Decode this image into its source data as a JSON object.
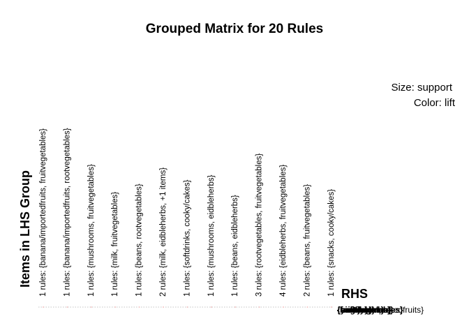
{
  "chart_data": {
    "type": "scatter",
    "title": "Grouped Matrix for 20 Rules",
    "legend": {
      "placement": "top-right",
      "size_label": "Size: support",
      "color_label": "Color: lift"
    },
    "xlabel": "Items in LHS Group",
    "ylabel": "RHS",
    "lhs_groups": [
      "1 rules: {banana/importedfruits, fruitvegetables}",
      "1 rules: {banana/importedfruits, rootvegetables}",
      "1 rules: {mushrooms, fruitvegetables}",
      "1 rules: {milk, fruitvegetables}",
      "1 rules: {beans, rootvegetables}",
      "2 rules: {milk, eidbleherbs, +1 items}",
      "1 rules: {softdrinks, cooky/cakes}",
      "1 rules: {mushrooms, eidbleherbs}",
      "1 rules: {beans, eidbleherbs}",
      "3 rules: {rootvegetables, fruitvegetables}",
      "4 rules: {eidbleherbs, fruitvegetables}",
      "2 rules: {beans, fruitvegetables}",
      "1 rules: {snacks, cooky/cakes}"
    ],
    "rhs_overlap_labels": [
      "{fruitvegetables}",
      "{rootvegetables}",
      "{eidbleherbs}",
      "{milk}",
      "{beans}",
      "{softdrinks}",
      "{cooky/cakes}",
      "{snacks}",
      "{mushrooms}",
      "{yoghurt}"
    ],
    "rhs_last_label": "{banana/importedfruits}",
    "point_color": "#f4b6b6",
    "grid_color": "#b0b0b0"
  }
}
